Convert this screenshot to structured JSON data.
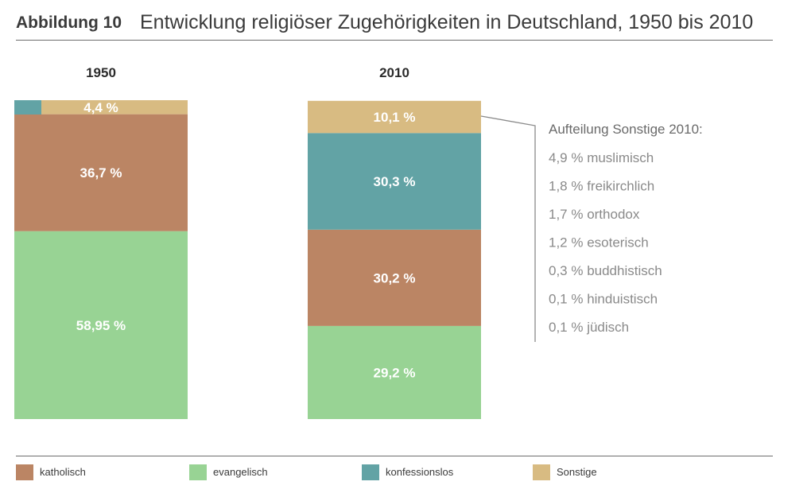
{
  "header": {
    "figure_label": "Abbildung 10",
    "title": "Entwicklung religiöser Zugehörigkeiten in Deutschland, 1950 bis 2010"
  },
  "chart_data": {
    "type": "bar",
    "stacked": true,
    "unit": "%",
    "categories": [
      "1950",
      "2010"
    ],
    "series": [
      {
        "name": "evangelisch",
        "color": "#98d394",
        "values": [
          58.95,
          29.2
        ],
        "labels": [
          "58,95 %",
          "29,2 %"
        ]
      },
      {
        "name": "katholisch",
        "color": "#bb8564",
        "values": [
          36.7,
          30.2
        ],
        "labels": [
          "36,7 %",
          "30,2 %"
        ]
      },
      {
        "name": "konfessionslos",
        "color": "#62a3a5",
        "values": [
          null,
          30.3
        ],
        "labels": [
          "",
          "30,3 %"
        ]
      },
      {
        "name": "Sonstige",
        "color": "#d8bb82",
        "values": [
          4.4,
          10.1
        ],
        "labels": [
          "4,4 %",
          "10,1 %"
        ]
      }
    ],
    "ylim": [
      0,
      100
    ],
    "grid": false,
    "legend_position": "bottom"
  },
  "breakdown": {
    "title": "Aufteilung Sonstige 2010:",
    "items": [
      "4,9 % muslimisch",
      "1,8 % freikirchlich",
      "1,7 % orthodox",
      "1,2 % esoterisch",
      "0,3 % buddhistisch",
      "0,1 % hinduistisch",
      "0,1 % jüdisch"
    ]
  },
  "legend": [
    {
      "label": "katholisch",
      "color": "#bb8564"
    },
    {
      "label": "evangelisch",
      "color": "#98d394"
    },
    {
      "label": "konfessionslos",
      "color": "#62a3a5"
    },
    {
      "label": "Sonstige",
      "color": "#d8bb82"
    }
  ]
}
